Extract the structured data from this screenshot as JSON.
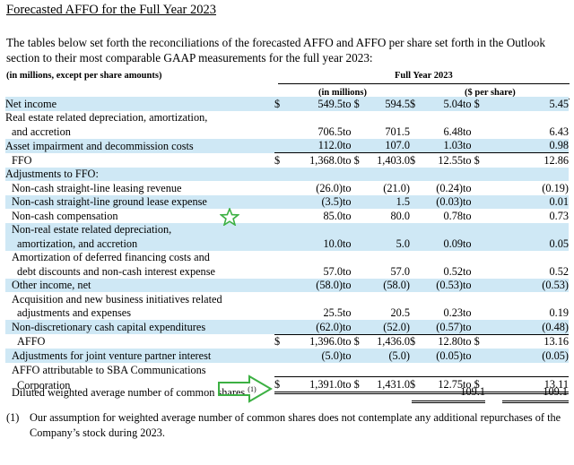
{
  "heading": "Forecasted AFFO for the Full Year 2023",
  "intro": "The tables below set forth the reconciliations of the forecasted AFFO and AFFO per share set forth in the Outlook section to their most comparable GAAP measurements for the full year 2023:",
  "units_note": "(in millions, except per share amounts)",
  "period_header": "Full Year 2023",
  "col_millions": "(in millions)",
  "col_per_share": "($ per share)",
  "rows": [
    {
      "label": "Net income",
      "indent": false,
      "shade": true,
      "c1": "$",
      "v1": "549.5",
      "t1": "to $",
      "v2": "594.5",
      "c2": "$",
      "v3": "5.04",
      "t2": "to $",
      "v4": "5.45"
    },
    {
      "label": "Real estate related depreciation, amortization,",
      "indent": false,
      "shade": false,
      "c1": "",
      "v1": "",
      "t1": "",
      "v2": "",
      "c2": "",
      "v3": "",
      "t2": "",
      "v4": ""
    },
    {
      "label": "and accretion",
      "indent": true,
      "shade": false,
      "c1": "",
      "v1": "706.5",
      "t1": "to",
      "v2": "701.5",
      "c2": "",
      "v3": "6.48",
      "t2": "to",
      "v4": "6.43"
    },
    {
      "label": "Asset impairment and decommission costs",
      "indent": false,
      "shade": true,
      "c1": "",
      "v1": "112.0",
      "t1": "to",
      "v2": "107.0",
      "c2": "",
      "v3": "1.03",
      "t2": "to",
      "v4": "0.98"
    },
    {
      "label": "FFO",
      "indent": true,
      "shade": false,
      "c1": "$",
      "v1": "1,368.0",
      "t1": "to $",
      "v2": "1,403.0",
      "c2": "$",
      "v3": "12.55",
      "t2": "to $",
      "v4": "12.86",
      "over": true
    },
    {
      "label": "Adjustments to FFO:",
      "indent": false,
      "shade": true,
      "c1": "",
      "v1": "",
      "t1": "",
      "v2": "",
      "c2": "",
      "v3": "",
      "t2": "",
      "v4": ""
    },
    {
      "label": "Non-cash straight-line leasing revenue",
      "indent": true,
      "shade": false,
      "c1": "",
      "v1": "(26.0)",
      "t1": "to",
      "v2": "(21.0)",
      "c2": "",
      "v3": "(0.24)",
      "t2": "to",
      "v4": "(0.19)"
    },
    {
      "label": "Non-cash straight-line ground lease expense",
      "indent": true,
      "shade": true,
      "c1": "",
      "v1": "(3.5)",
      "t1": "to",
      "v2": "1.5",
      "c2": "",
      "v3": "(0.03)",
      "t2": "to",
      "v4": "0.01"
    },
    {
      "label": "Non-cash compensation",
      "indent": true,
      "shade": false,
      "c1": "",
      "v1": "85.0",
      "t1": "to",
      "v2": "80.0",
      "c2": "",
      "v3": "0.78",
      "t2": "to",
      "v4": "0.73"
    },
    {
      "label": "Non-real estate related depreciation,",
      "indent": true,
      "shade": true,
      "c1": "",
      "v1": "",
      "t1": "",
      "v2": "",
      "c2": "",
      "v3": "",
      "t2": "",
      "v4": ""
    },
    {
      "label": "amortization, and accretion",
      "indent": true,
      "extra": true,
      "shade": true,
      "c1": "",
      "v1": "10.0",
      "t1": "to",
      "v2": "5.0",
      "c2": "",
      "v3": "0.09",
      "t2": "to",
      "v4": "0.05"
    },
    {
      "label": "Amortization of deferred financing costs and",
      "indent": true,
      "shade": false,
      "c1": "",
      "v1": "",
      "t1": "",
      "v2": "",
      "c2": "",
      "v3": "",
      "t2": "",
      "v4": ""
    },
    {
      "label": "debt discounts and non-cash interest expense",
      "indent": true,
      "extra": true,
      "shade": false,
      "c1": "",
      "v1": "57.0",
      "t1": "to",
      "v2": "57.0",
      "c2": "",
      "v3": "0.52",
      "t2": "to",
      "v4": "0.52"
    },
    {
      "label": "Other income, net",
      "indent": true,
      "shade": true,
      "c1": "",
      "v1": "(58.0)",
      "t1": "to",
      "v2": "(58.0)",
      "c2": "",
      "v3": "(0.53)",
      "t2": "to",
      "v4": "(0.53)"
    },
    {
      "label": "Acquisition and new business initiatives related",
      "indent": true,
      "shade": false,
      "c1": "",
      "v1": "",
      "t1": "",
      "v2": "",
      "c2": "",
      "v3": "",
      "t2": "",
      "v4": ""
    },
    {
      "label": "adjustments and expenses",
      "indent": true,
      "extra": true,
      "shade": false,
      "c1": "",
      "v1": "25.5",
      "t1": "to",
      "v2": "20.5",
      "c2": "",
      "v3": "0.23",
      "t2": "to",
      "v4": "0.19"
    },
    {
      "label": "Non-discretionary cash capital expenditures",
      "indent": true,
      "shade": true,
      "c1": "",
      "v1": "(62.0)",
      "t1": "to",
      "v2": "(52.0)",
      "c2": "",
      "v3": "(0.57)",
      "t2": "to",
      "v4": "(0.48)"
    },
    {
      "label": "AFFO",
      "indent": true,
      "extra": true,
      "shade": false,
      "c1": "$",
      "v1": "1,396.0",
      "t1": "to $",
      "v2": "1,436.0",
      "c2": "$",
      "v3": "12.80",
      "t2": "to $",
      "v4": "13.16",
      "over": true
    },
    {
      "label": "Adjustments for joint venture partner interest",
      "indent": true,
      "shade": true,
      "c1": "",
      "v1": "(5.0)",
      "t1": "to",
      "v2": "(5.0)",
      "c2": "",
      "v3": "(0.05)",
      "t2": "to",
      "v4": "(0.05)"
    },
    {
      "label": "AFFO attributable to SBA Communications",
      "indent": true,
      "shade": false,
      "c1": "",
      "v1": "",
      "t1": "",
      "v2": "",
      "c2": "",
      "v3": "",
      "t2": "",
      "v4": ""
    },
    {
      "label": "Corporation",
      "indent": true,
      "extra": true,
      "shade": false,
      "c1": "$",
      "v1": "1,391.0",
      "t1": "to $",
      "v2": "1,431.0",
      "c2": "$",
      "v3": "12.75",
      "t2": "to $",
      "v4": "13.11",
      "over": true,
      "double": true
    }
  ],
  "shares_label": "Diluted weighted average number of common shares",
  "shares_sup": "(1)",
  "shares_v1": "109.1",
  "shares_v2": "109.1",
  "footnote_num": "(1)",
  "footnote_text": "Our assumption for weighted average number of common shares does not contemplate any additional repurchases of the Company’s stock during 2023.",
  "colors": {
    "shade": "#cfe8f5",
    "annotation": "#3cb043"
  }
}
